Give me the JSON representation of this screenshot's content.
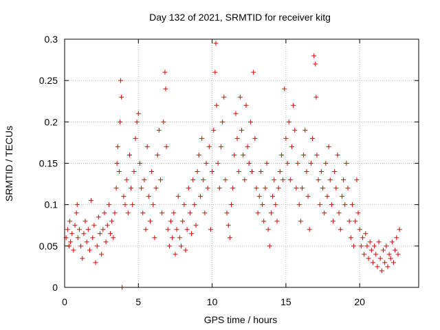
{
  "chart_data": {
    "type": "scatter",
    "title": "Day 132 of 2021, SRMTID for receiver kitg",
    "xlabel": "GPS time / hours",
    "ylabel": "SRMTID / TECUs",
    "xlim": [
      0,
      24
    ],
    "ylim": [
      0,
      0.3
    ],
    "xticks": [
      0,
      5,
      10,
      15,
      20
    ],
    "xtick_labels": [
      "0",
      "5",
      "10",
      "15",
      "20"
    ],
    "yticks": [
      0,
      0.05,
      0.1,
      0.15,
      0.2,
      0.25,
      0.3
    ],
    "ytick_labels": [
      "0",
      "0.05",
      "0.1",
      "0.15",
      "0.2",
      "0.25",
      "0.3"
    ],
    "grid": true,
    "marker": "+",
    "color": "#e00000",
    "series": [
      {
        "name": "SRMTID",
        "points": [
          [
            0.1,
            0.06
          ],
          [
            0.2,
            0.07
          ],
          [
            0.3,
            0.05
          ],
          [
            0.35,
            0.08
          ],
          [
            0.4,
            0.055
          ],
          [
            0.5,
            0.065
          ],
          [
            0.6,
            0.045
          ],
          [
            0.7,
            0.075
          ],
          [
            0.8,
            0.09
          ],
          [
            0.85,
            0.1
          ],
          [
            0.9,
            0.06
          ],
          [
            1.0,
            0.07
          ],
          [
            1.1,
            0.05
          ],
          [
            1.2,
            0.035
          ],
          [
            1.3,
            0.065
          ],
          [
            1.4,
            0.08
          ],
          [
            1.5,
            0.055
          ],
          [
            1.6,
            0.07
          ],
          [
            1.7,
            0.045
          ],
          [
            1.8,
            0.105
          ],
          [
            1.9,
            0.06
          ],
          [
            2.0,
            0.075
          ],
          [
            2.1,
            0.03
          ],
          [
            2.2,
            0.05
          ],
          [
            2.3,
            0.085
          ],
          [
            2.4,
            0.065
          ],
          [
            2.5,
            0.04
          ],
          [
            2.6,
            0.07
          ],
          [
            2.7,
            0.09
          ],
          [
            2.8,
            0.055
          ],
          [
            2.9,
            0.075
          ],
          [
            3.0,
            0.1
          ],
          [
            3.1,
            0.065
          ],
          [
            3.2,
            0.08
          ],
          [
            3.3,
            0.06
          ],
          [
            3.4,
            0.09
          ],
          [
            3.5,
            0.12
          ],
          [
            3.55,
            0.15
          ],
          [
            3.6,
            0.17
          ],
          [
            3.7,
            0.14
          ],
          [
            3.75,
            0.2
          ],
          [
            3.8,
            0.25
          ],
          [
            3.85,
            0.23
          ],
          [
            3.9,
            0.0
          ],
          [
            4.0,
            0.11
          ],
          [
            4.1,
            0.1
          ],
          [
            4.2,
            0.13
          ],
          [
            4.3,
            0.09
          ],
          [
            4.4,
            0.16
          ],
          [
            4.5,
            0.12
          ],
          [
            4.6,
            0.1
          ],
          [
            4.7,
            0.14
          ],
          [
            4.8,
            0.18
          ],
          [
            4.9,
            0.2
          ],
          [
            5.0,
            0.21
          ],
          [
            5.1,
            0.15
          ],
          [
            5.2,
            0.12
          ],
          [
            5.3,
            0.09
          ],
          [
            5.4,
            0.13
          ],
          [
            5.5,
            0.07
          ],
          [
            5.6,
            0.17
          ],
          [
            5.7,
            0.11
          ],
          [
            5.8,
            0.08
          ],
          [
            5.9,
            0.14
          ],
          [
            6.0,
            0.1
          ],
          [
            6.1,
            0.06
          ],
          [
            6.2,
            0.12
          ],
          [
            6.3,
            0.16
          ],
          [
            6.4,
            0.19
          ],
          [
            6.5,
            0.13
          ],
          [
            6.6,
            0.09
          ],
          [
            6.7,
            0.2
          ],
          [
            6.8,
            0.26
          ],
          [
            6.85,
            0.24
          ],
          [
            6.9,
            0.17
          ],
          [
            7.0,
            0.07
          ],
          [
            7.1,
            0.05
          ],
          [
            7.2,
            0.08
          ],
          [
            7.3,
            0.06
          ],
          [
            7.4,
            0.09
          ],
          [
            7.5,
            0.04
          ],
          [
            7.6,
            0.07
          ],
          [
            7.7,
            0.11
          ],
          [
            7.8,
            0.06
          ],
          [
            7.9,
            0.05
          ],
          [
            8.0,
            0.08
          ],
          [
            8.1,
            0.1
          ],
          [
            8.2,
            0.045
          ],
          [
            8.3,
            0.07
          ],
          [
            8.4,
            0.12
          ],
          [
            8.5,
            0.09
          ],
          [
            8.6,
            0.065
          ],
          [
            8.7,
            0.13
          ],
          [
            8.8,
            0.1
          ],
          [
            8.9,
            0.075
          ],
          [
            9.0,
            0.14
          ],
          [
            9.1,
            0.16
          ],
          [
            9.2,
            0.11
          ],
          [
            9.3,
            0.18
          ],
          [
            9.4,
            0.13
          ],
          [
            9.5,
            0.09
          ],
          [
            9.6,
            0.15
          ],
          [
            9.7,
            0.12
          ],
          [
            9.8,
            0.17
          ],
          [
            9.9,
            0.07
          ],
          [
            10.0,
            0.14
          ],
          [
            10.1,
            0.19
          ],
          [
            10.2,
            0.26
          ],
          [
            10.25,
            0.295
          ],
          [
            10.3,
            0.22
          ],
          [
            10.4,
            0.15
          ],
          [
            10.5,
            0.12
          ],
          [
            10.6,
            0.17
          ],
          [
            10.7,
            0.2
          ],
          [
            10.8,
            0.23
          ],
          [
            10.9,
            0.13
          ],
          [
            11.0,
            0.09
          ],
          [
            11.1,
            0.075
          ],
          [
            11.2,
            0.06
          ],
          [
            11.3,
            0.1
          ],
          [
            11.4,
            0.12
          ],
          [
            11.5,
            0.16
          ],
          [
            11.6,
            0.21
          ],
          [
            11.7,
            0.18
          ],
          [
            11.8,
            0.14
          ],
          [
            11.9,
            0.23
          ],
          [
            12.0,
            0.19
          ],
          [
            12.1,
            0.16
          ],
          [
            12.2,
            0.13
          ],
          [
            12.3,
            0.22
          ],
          [
            12.4,
            0.17
          ],
          [
            12.5,
            0.15
          ],
          [
            12.6,
            0.2
          ],
          [
            12.7,
            0.14
          ],
          [
            12.8,
            0.26
          ],
          [
            12.9,
            0.18
          ],
          [
            13.0,
            0.12
          ],
          [
            13.1,
            0.09
          ],
          [
            13.2,
            0.11
          ],
          [
            13.3,
            0.14
          ],
          [
            13.4,
            0.1
          ],
          [
            13.5,
            0.08
          ],
          [
            13.6,
            0.12
          ],
          [
            13.7,
            0.15
          ],
          [
            13.8,
            0.07
          ],
          [
            13.9,
            0.05
          ],
          [
            14.0,
            0.09
          ],
          [
            14.1,
            0.11
          ],
          [
            14.2,
            0.13
          ],
          [
            14.3,
            0.1
          ],
          [
            14.4,
            0.08
          ],
          [
            14.5,
            0.12
          ],
          [
            14.6,
            0.14
          ],
          [
            14.7,
            0.16
          ],
          [
            14.8,
            0.13
          ],
          [
            14.9,
            0.24
          ],
          [
            15.0,
            0.18
          ],
          [
            15.1,
            0.15
          ],
          [
            15.2,
            0.2
          ],
          [
            15.3,
            0.13
          ],
          [
            15.4,
            0.17
          ],
          [
            15.5,
            0.22
          ],
          [
            15.6,
            0.19
          ],
          [
            15.7,
            0.12
          ],
          [
            15.8,
            0.15
          ],
          [
            15.9,
            0.1
          ],
          [
            16.0,
            0.08
          ],
          [
            16.1,
            0.12
          ],
          [
            16.2,
            0.16
          ],
          [
            16.3,
            0.19
          ],
          [
            16.4,
            0.14
          ],
          [
            16.5,
            0.11
          ],
          [
            16.6,
            0.07
          ],
          [
            16.7,
            0.15
          ],
          [
            16.8,
            0.18
          ],
          [
            16.9,
            0.28
          ],
          [
            17.0,
            0.27
          ],
          [
            17.05,
            0.23
          ],
          [
            17.1,
            0.16
          ],
          [
            17.2,
            0.13
          ],
          [
            17.3,
            0.1
          ],
          [
            17.4,
            0.14
          ],
          [
            17.5,
            0.12
          ],
          [
            17.6,
            0.09
          ],
          [
            17.7,
            0.15
          ],
          [
            17.8,
            0.11
          ],
          [
            17.9,
            0.17
          ],
          [
            18.0,
            0.13
          ],
          [
            18.1,
            0.1
          ],
          [
            18.2,
            0.08
          ],
          [
            18.3,
            0.14
          ],
          [
            18.4,
            0.12
          ],
          [
            18.5,
            0.16
          ],
          [
            18.6,
            0.09
          ],
          [
            18.7,
            0.07
          ],
          [
            18.8,
            0.11
          ],
          [
            18.9,
            0.13
          ],
          [
            19.0,
            0.1
          ],
          [
            19.1,
            0.15
          ],
          [
            19.2,
            0.12
          ],
          [
            19.3,
            0.08
          ],
          [
            19.4,
            0.06
          ],
          [
            19.5,
            0.1
          ],
          [
            19.6,
            0.05
          ],
          [
            19.7,
            0.08
          ],
          [
            19.8,
            0.13
          ],
          [
            19.9,
            0.09
          ],
          [
            20.0,
            0.07
          ],
          [
            20.1,
            0.05
          ],
          [
            20.2,
            0.06
          ],
          [
            20.3,
            0.04
          ],
          [
            20.4,
            0.065
          ],
          [
            20.5,
            0.05
          ],
          [
            20.6,
            0.035
          ],
          [
            20.7,
            0.055
          ],
          [
            20.8,
            0.045
          ],
          [
            20.9,
            0.03
          ],
          [
            21.0,
            0.05
          ],
          [
            21.1,
            0.04
          ],
          [
            21.2,
            0.025
          ],
          [
            21.3,
            0.055
          ],
          [
            21.4,
            0.035
          ],
          [
            21.5,
            0.02
          ],
          [
            21.6,
            0.045
          ],
          [
            21.7,
            0.03
          ],
          [
            21.8,
            0.05
          ],
          [
            21.9,
            0.025
          ],
          [
            22.0,
            0.04
          ],
          [
            22.1,
            0.035
          ],
          [
            22.2,
            0.055
          ],
          [
            22.3,
            0.03
          ],
          [
            22.4,
            0.045
          ],
          [
            22.5,
            0.06
          ],
          [
            22.6,
            0.04
          ],
          [
            22.7,
            0.07
          ]
        ]
      }
    ]
  }
}
